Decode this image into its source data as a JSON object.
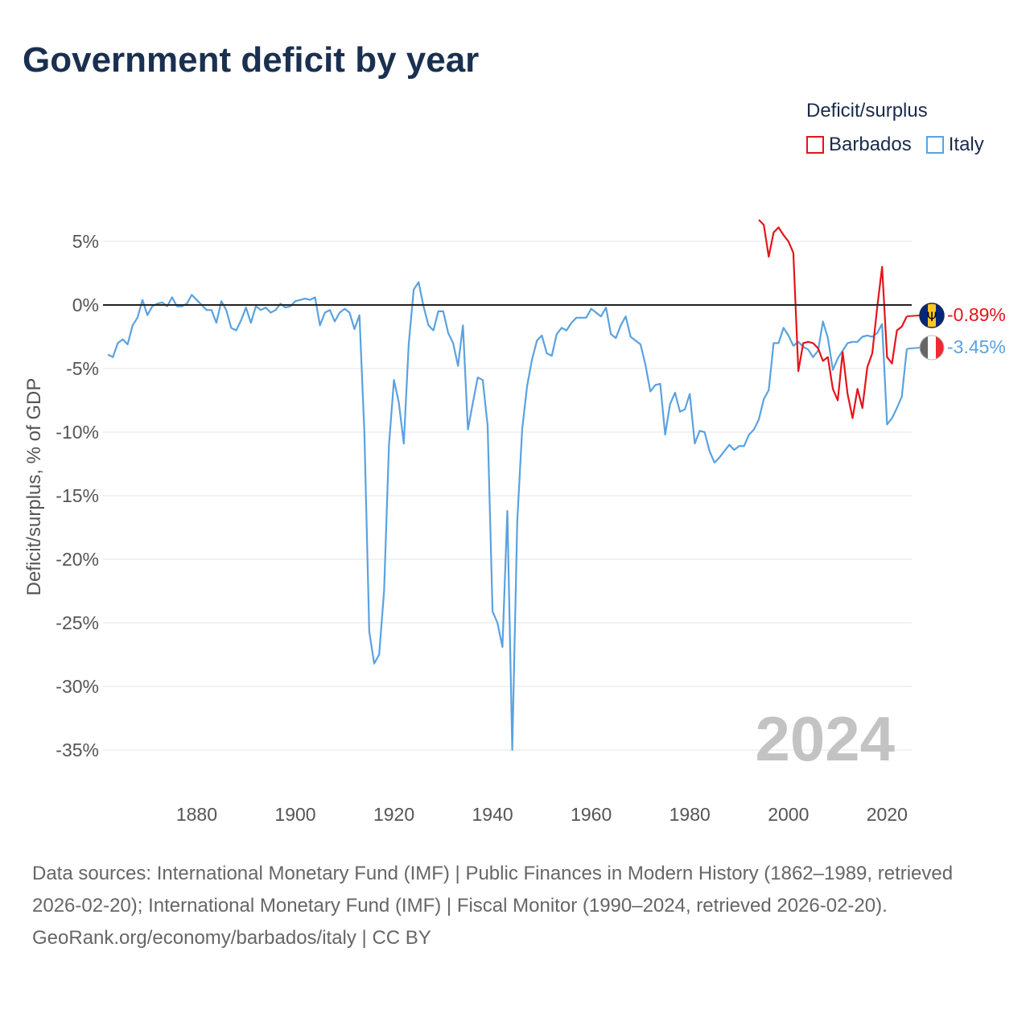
{
  "title": "Government deficit by year",
  "legend": {
    "title": "Deficit/surplus",
    "items": [
      {
        "name": "Barbados",
        "color": "#e4141b"
      },
      {
        "name": "Italy",
        "color": "#5aa2e0"
      }
    ]
  },
  "year_label": "2024",
  "sources": "Data sources: International Monetary Fund (IMF) | Public Finances in Modern History (1862–1989, retrieved 2026-02-20); International Monetary Fund (IMF) | Fiscal Monitor (1990–2024, retrieved 2026-02-20).",
  "credit": "GeoRank.org/economy/barbados/italy | CC BY",
  "chart_data": {
    "type": "line",
    "title": "Government deficit by year",
    "xlabel": "",
    "ylabel": "Deficit/surplus, % of GDP",
    "xlim": [
      1861,
      2025
    ],
    "ylim": [
      -35,
      5
    ],
    "xticks": [
      1880,
      1900,
      1920,
      1940,
      1960,
      1980,
      2000,
      2020
    ],
    "yticks": [
      5,
      0,
      -5,
      -10,
      -15,
      -20,
      -25,
      -30,
      -35
    ],
    "ytick_labels": [
      "5%",
      "0%",
      "-5%",
      "-10%",
      "-15%",
      "-20%",
      "-25%",
      "-30%",
      "-35%"
    ],
    "zero_line": true,
    "series": [
      {
        "name": "Italy",
        "color": "#5aa2e0",
        "end_label": "-3.45%",
        "flag": "italy",
        "points": [
          [
            1862,
            -3.9
          ],
          [
            1863,
            -4.1
          ],
          [
            1864,
            -3.0
          ],
          [
            1865,
            -2.7
          ],
          [
            1866,
            -3.1
          ],
          [
            1867,
            -1.6
          ],
          [
            1868,
            -1.0
          ],
          [
            1869,
            0.4
          ],
          [
            1870,
            -0.8
          ],
          [
            1871,
            -0.1
          ],
          [
            1872,
            0.1
          ],
          [
            1873,
            0.2
          ],
          [
            1874,
            -0.1
          ],
          [
            1875,
            0.6
          ],
          [
            1876,
            -0.1
          ],
          [
            1877,
            -0.1
          ],
          [
            1878,
            0.1
          ],
          [
            1879,
            0.8
          ],
          [
            1880,
            0.4
          ],
          [
            1881,
            0.0
          ],
          [
            1882,
            -0.4
          ],
          [
            1883,
            -0.4
          ],
          [
            1884,
            -1.4
          ],
          [
            1885,
            0.3
          ],
          [
            1886,
            -0.4
          ],
          [
            1887,
            -1.8
          ],
          [
            1888,
            -2.0
          ],
          [
            1889,
            -1.2
          ],
          [
            1890,
            -0.2
          ],
          [
            1891,
            -1.4
          ],
          [
            1892,
            -0.1
          ],
          [
            1893,
            -0.4
          ],
          [
            1894,
            -0.2
          ],
          [
            1895,
            -0.6
          ],
          [
            1896,
            -0.4
          ],
          [
            1897,
            0.1
          ],
          [
            1898,
            -0.2
          ],
          [
            1899,
            -0.1
          ],
          [
            1900,
            0.3
          ],
          [
            1901,
            0.4
          ],
          [
            1902,
            0.5
          ],
          [
            1903,
            0.4
          ],
          [
            1904,
            0.6
          ],
          [
            1905,
            -1.6
          ],
          [
            1906,
            -0.6
          ],
          [
            1907,
            -0.4
          ],
          [
            1908,
            -1.3
          ],
          [
            1909,
            -0.6
          ],
          [
            1910,
            -0.3
          ],
          [
            1911,
            -0.6
          ],
          [
            1912,
            -1.9
          ],
          [
            1913,
            -0.8
          ],
          [
            1914,
            -10.0
          ],
          [
            1915,
            -25.7
          ],
          [
            1916,
            -28.2
          ],
          [
            1917,
            -27.5
          ],
          [
            1918,
            -22.5
          ],
          [
            1919,
            -11.0
          ],
          [
            1920,
            -5.9
          ],
          [
            1921,
            -7.7
          ],
          [
            1922,
            -10.9
          ],
          [
            1923,
            -3.1
          ],
          [
            1924,
            1.2
          ],
          [
            1925,
            1.8
          ],
          [
            1926,
            -0.1
          ],
          [
            1927,
            -1.6
          ],
          [
            1928,
            -2.0
          ],
          [
            1929,
            -0.5
          ],
          [
            1930,
            -0.5
          ],
          [
            1931,
            -2.2
          ],
          [
            1932,
            -3.0
          ],
          [
            1933,
            -4.8
          ],
          [
            1934,
            -1.6
          ],
          [
            1935,
            -9.8
          ],
          [
            1936,
            -7.7
          ],
          [
            1937,
            -5.7
          ],
          [
            1938,
            -5.9
          ],
          [
            1939,
            -9.5
          ],
          [
            1940,
            -24.1
          ],
          [
            1941,
            -25.0
          ],
          [
            1942,
            -26.9
          ],
          [
            1943,
            -16.2
          ],
          [
            1944,
            -35.0
          ],
          [
            1945,
            -17.0
          ],
          [
            1946,
            -9.8
          ],
          [
            1947,
            -6.4
          ],
          [
            1948,
            -4.3
          ],
          [
            1949,
            -2.8
          ],
          [
            1950,
            -2.4
          ],
          [
            1951,
            -3.8
          ],
          [
            1952,
            -4.0
          ],
          [
            1953,
            -2.3
          ],
          [
            1954,
            -1.8
          ],
          [
            1955,
            -2.0
          ],
          [
            1956,
            -1.4
          ],
          [
            1957,
            -1.0
          ],
          [
            1958,
            -1.0
          ],
          [
            1959,
            -1.0
          ],
          [
            1960,
            -0.3
          ],
          [
            1961,
            -0.6
          ],
          [
            1962,
            -0.9
          ],
          [
            1963,
            -0.2
          ],
          [
            1964,
            -2.3
          ],
          [
            1965,
            -2.6
          ],
          [
            1966,
            -1.6
          ],
          [
            1967,
            -0.9
          ],
          [
            1968,
            -2.5
          ],
          [
            1969,
            -2.8
          ],
          [
            1970,
            -3.1
          ],
          [
            1971,
            -4.7
          ],
          [
            1972,
            -6.8
          ],
          [
            1973,
            -6.3
          ],
          [
            1974,
            -6.2
          ],
          [
            1975,
            -10.2
          ],
          [
            1976,
            -7.8
          ],
          [
            1977,
            -6.9
          ],
          [
            1978,
            -8.4
          ],
          [
            1979,
            -8.2
          ],
          [
            1980,
            -7.0
          ],
          [
            1981,
            -10.9
          ],
          [
            1982,
            -9.9
          ],
          [
            1983,
            -10.0
          ],
          [
            1984,
            -11.5
          ],
          [
            1985,
            -12.4
          ],
          [
            1986,
            -12.0
          ],
          [
            1987,
            -11.5
          ],
          [
            1988,
            -11.0
          ],
          [
            1989,
            -11.4
          ],
          [
            1990,
            -11.1
          ],
          [
            1991,
            -11.1
          ],
          [
            1992,
            -10.2
          ],
          [
            1993,
            -9.8
          ],
          [
            1994,
            -9.0
          ],
          [
            1995,
            -7.4
          ],
          [
            1996,
            -6.7
          ],
          [
            1997,
            -3.0
          ],
          [
            1998,
            -3.0
          ],
          [
            1999,
            -1.8
          ],
          [
            2000,
            -2.4
          ],
          [
            2001,
            -3.2
          ],
          [
            2002,
            -2.9
          ],
          [
            2003,
            -3.3
          ],
          [
            2004,
            -3.5
          ],
          [
            2005,
            -4.1
          ],
          [
            2006,
            -3.6
          ],
          [
            2007,
            -1.3
          ],
          [
            2008,
            -2.6
          ],
          [
            2009,
            -5.1
          ],
          [
            2010,
            -4.2
          ],
          [
            2011,
            -3.6
          ],
          [
            2012,
            -3.0
          ],
          [
            2013,
            -2.9
          ],
          [
            2014,
            -2.9
          ],
          [
            2015,
            -2.5
          ],
          [
            2016,
            -2.4
          ],
          [
            2017,
            -2.5
          ],
          [
            2018,
            -2.2
          ],
          [
            2019,
            -1.5
          ],
          [
            2020,
            -9.4
          ],
          [
            2021,
            -8.9
          ],
          [
            2022,
            -8.1
          ],
          [
            2023,
            -7.2
          ],
          [
            2024,
            -3.45
          ]
        ]
      },
      {
        "name": "Barbados",
        "color": "#e4141b",
        "end_label": "-0.89%",
        "flag": "barbados",
        "points": [
          [
            1994,
            6.7
          ],
          [
            1995,
            6.3
          ],
          [
            1996,
            3.8
          ],
          [
            1997,
            5.7
          ],
          [
            1998,
            6.1
          ],
          [
            1999,
            5.5
          ],
          [
            2000,
            5.0
          ],
          [
            2001,
            4.1
          ],
          [
            2002,
            -5.2
          ],
          [
            2003,
            -3.0
          ],
          [
            2004,
            -2.9
          ],
          [
            2005,
            -3.0
          ],
          [
            2006,
            -3.4
          ],
          [
            2007,
            -4.4
          ],
          [
            2008,
            -4.1
          ],
          [
            2009,
            -6.6
          ],
          [
            2010,
            -7.5
          ],
          [
            2011,
            -3.7
          ],
          [
            2012,
            -7.0
          ],
          [
            2013,
            -8.9
          ],
          [
            2014,
            -6.6
          ],
          [
            2015,
            -8.1
          ],
          [
            2016,
            -4.9
          ],
          [
            2017,
            -3.8
          ],
          [
            2018,
            -0.2
          ],
          [
            2019,
            3.0
          ],
          [
            2020,
            -4.1
          ],
          [
            2021,
            -4.6
          ],
          [
            2022,
            -2.0
          ],
          [
            2023,
            -1.7
          ],
          [
            2024,
            -0.89
          ]
        ]
      }
    ]
  }
}
